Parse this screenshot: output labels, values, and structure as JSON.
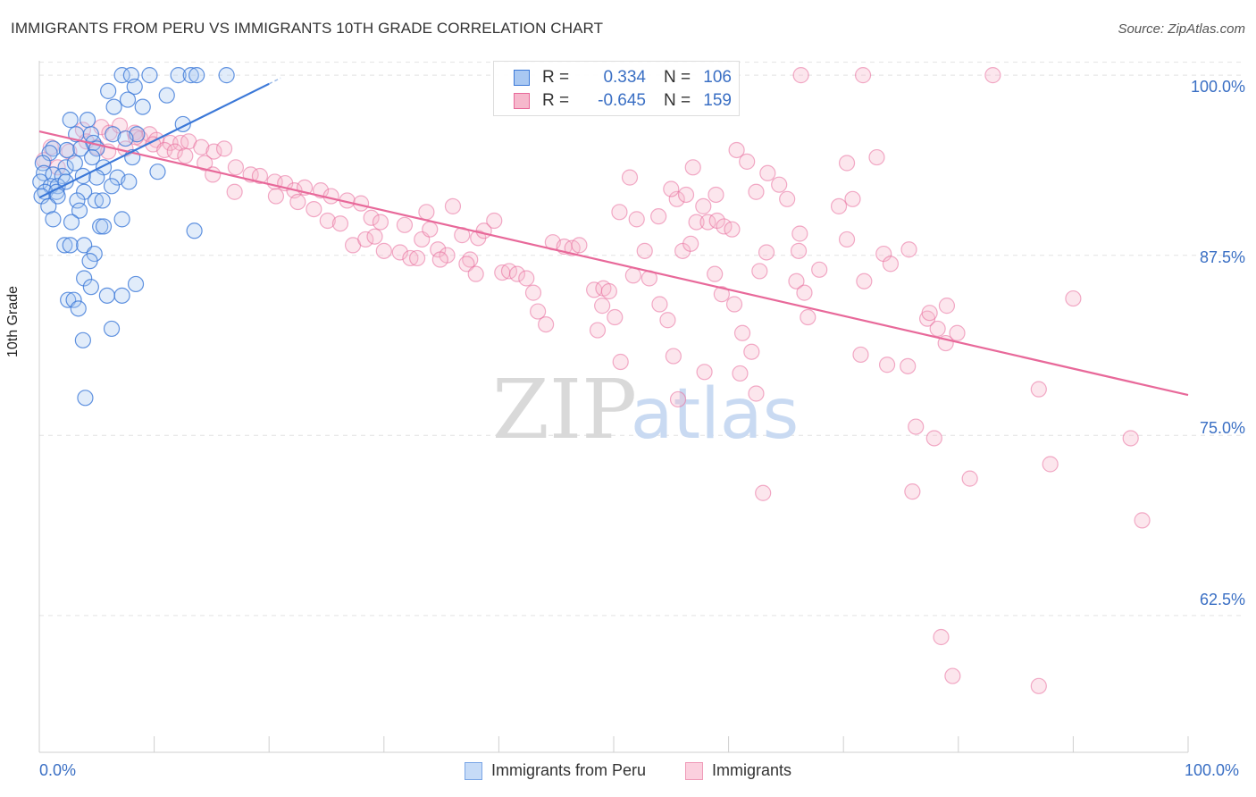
{
  "title": "IMMIGRANTS FROM PERU VS IMMIGRANTS 10TH GRADE CORRELATION CHART",
  "source": "Source: ZipAtlas.com",
  "watermark": {
    "zip": "ZIP",
    "atlas": "atlas"
  },
  "legend": {
    "rows": [
      {
        "r_label": "R =",
        "r_value": "0.334",
        "n_label": "N =",
        "n_value": "106"
      },
      {
        "r_label": "R =",
        "r_value": "-0.645",
        "n_label": "N =",
        "n_value": "159"
      }
    ]
  },
  "bottom_legend": [
    "Immigrants from Peru",
    "Immigrants"
  ],
  "colors": {
    "blue": "#3b78d8",
    "blue_fill": "#a9c8f2",
    "pink": "#e8699a",
    "pink_fill": "#f6b8cc",
    "tick_label": "#3a6fc4"
  },
  "chart_data": {
    "type": "scatter",
    "title": "IMMIGRANTS FROM PERU VS IMMIGRANTS 10TH GRADE CORRELATION CHART",
    "xlabel": "",
    "ylabel": "10th Grade",
    "xlim": [
      0,
      100
    ],
    "ylim": [
      53,
      101
    ],
    "x_tick_labels": [
      "0.0%",
      "100.0%"
    ],
    "y_ticks": [
      62.5,
      75.0,
      87.5,
      100.0
    ],
    "y_tick_labels": [
      "62.5%",
      "75.0%",
      "87.5%",
      "100.0%"
    ],
    "grid": true,
    "legend_position": "top-center",
    "series": [
      {
        "name": "Immigrants from Peru",
        "color": "#3b78d8",
        "r": 0.334,
        "n": 106,
        "trend": {
          "x": [
            0.0,
            20.0
          ],
          "y": [
            91.5,
            99.4
          ]
        },
        "points": [
          [
            7.2,
            100
          ],
          [
            8.0,
            100
          ],
          [
            9.6,
            100
          ],
          [
            12.1,
            100
          ],
          [
            13.2,
            100
          ],
          [
            13.7,
            100
          ],
          [
            16.3,
            100
          ],
          [
            6.0,
            98.9
          ],
          [
            8.3,
            99.2
          ],
          [
            7.7,
            98.3
          ],
          [
            11.1,
            98.6
          ],
          [
            9.0,
            97.8
          ],
          [
            6.5,
            97.8
          ],
          [
            2.7,
            96.9
          ],
          [
            4.2,
            96.9
          ],
          [
            12.5,
            96.6
          ],
          [
            3.2,
            95.9
          ],
          [
            4.5,
            95.9
          ],
          [
            6.4,
            95.9
          ],
          [
            8.5,
            95.9
          ],
          [
            4.7,
            95.3
          ],
          [
            7.5,
            95.6
          ],
          [
            1.2,
            94.9
          ],
          [
            2.4,
            94.8
          ],
          [
            3.6,
            94.9
          ],
          [
            5.0,
            94.9
          ],
          [
            0.9,
            94.6
          ],
          [
            4.6,
            94.3
          ],
          [
            8.1,
            94.3
          ],
          [
            0.3,
            93.9
          ],
          [
            2.3,
            93.6
          ],
          [
            3.1,
            93.9
          ],
          [
            5.6,
            93.6
          ],
          [
            10.3,
            93.3
          ],
          [
            0.4,
            93.2
          ],
          [
            1.2,
            93.1
          ],
          [
            2.0,
            93.0
          ],
          [
            3.8,
            93.0
          ],
          [
            5.0,
            92.9
          ],
          [
            6.8,
            92.9
          ],
          [
            0.1,
            92.6
          ],
          [
            1.0,
            92.3
          ],
          [
            1.6,
            92.3
          ],
          [
            2.3,
            92.6
          ],
          [
            6.3,
            92.3
          ],
          [
            7.8,
            92.6
          ],
          [
            0.5,
            91.9
          ],
          [
            1.5,
            91.9
          ],
          [
            3.9,
            91.9
          ],
          [
            0.2,
            91.6
          ],
          [
            1.6,
            91.6
          ],
          [
            3.3,
            91.3
          ],
          [
            4.9,
            91.3
          ],
          [
            5.5,
            91.3
          ],
          [
            0.8,
            90.9
          ],
          [
            3.5,
            90.6
          ],
          [
            1.2,
            90.0
          ],
          [
            2.8,
            89.8
          ],
          [
            7.2,
            90.0
          ],
          [
            5.3,
            89.5
          ],
          [
            5.6,
            89.5
          ],
          [
            13.5,
            89.2
          ],
          [
            2.2,
            88.2
          ],
          [
            2.7,
            88.2
          ],
          [
            3.9,
            88.2
          ],
          [
            4.8,
            87.6
          ],
          [
            4.4,
            87.1
          ],
          [
            3.9,
            85.9
          ],
          [
            4.5,
            85.3
          ],
          [
            8.4,
            85.5
          ],
          [
            2.5,
            84.4
          ],
          [
            3.0,
            84.4
          ],
          [
            5.9,
            84.7
          ],
          [
            7.2,
            84.7
          ],
          [
            3.4,
            83.8
          ],
          [
            6.3,
            82.4
          ],
          [
            3.8,
            81.6
          ],
          [
            4.0,
            77.6
          ]
        ]
      },
      {
        "name": "Immigrants",
        "color": "#e8699a",
        "r": -0.645,
        "n": 159,
        "trend": {
          "x": [
            0.0,
            100.0
          ],
          "y": [
            96.1,
            77.8
          ]
        },
        "points": [
          [
            66.3,
            100
          ],
          [
            71.7,
            100
          ],
          [
            83.0,
            100
          ],
          [
            1.0,
            95.0
          ],
          [
            3.8,
            96.2
          ],
          [
            5.4,
            96.4
          ],
          [
            6.1,
            96.0
          ],
          [
            7.0,
            96.5
          ],
          [
            8.3,
            96.0
          ],
          [
            8.8,
            95.6
          ],
          [
            9.6,
            95.9
          ],
          [
            10.2,
            95.5
          ],
          [
            11.4,
            95.3
          ],
          [
            12.3,
            95.3
          ],
          [
            13.0,
            95.4
          ],
          [
            14.1,
            95.0
          ],
          [
            15.2,
            94.7
          ],
          [
            16.1,
            94.9
          ],
          [
            0.4,
            94.1
          ],
          [
            1.6,
            93.6
          ],
          [
            2.6,
            94.7
          ],
          [
            4.1,
            95.4
          ],
          [
            5.0,
            95.0
          ],
          [
            6.0,
            94.7
          ],
          [
            7.5,
            94.9
          ],
          [
            8.4,
            95.7
          ],
          [
            9.9,
            95.2
          ],
          [
            10.9,
            94.8
          ],
          [
            11.8,
            94.7
          ],
          [
            12.7,
            94.4
          ],
          [
            14.4,
            93.9
          ],
          [
            15.1,
            93.1
          ],
          [
            17.1,
            93.6
          ],
          [
            18.4,
            93.1
          ],
          [
            19.2,
            93.0
          ],
          [
            20.5,
            92.6
          ],
          [
            21.4,
            92.5
          ],
          [
            22.2,
            92.0
          ],
          [
            23.1,
            92.2
          ],
          [
            24.5,
            92.0
          ],
          [
            25.4,
            91.6
          ],
          [
            26.8,
            91.3
          ],
          [
            28.0,
            91.1
          ],
          [
            28.9,
            90.1
          ],
          [
            29.7,
            89.8
          ],
          [
            17.0,
            91.9
          ],
          [
            20.6,
            91.6
          ],
          [
            22.5,
            91.2
          ],
          [
            23.9,
            90.7
          ],
          [
            25.1,
            89.9
          ],
          [
            26.2,
            89.7
          ],
          [
            27.3,
            88.2
          ],
          [
            28.4,
            88.6
          ],
          [
            29.2,
            88.8
          ],
          [
            30.0,
            87.8
          ],
          [
            31.4,
            87.7
          ],
          [
            32.3,
            87.3
          ],
          [
            33.3,
            88.6
          ],
          [
            34.0,
            89.3
          ],
          [
            34.7,
            87.9
          ],
          [
            35.5,
            87.5
          ],
          [
            36.8,
            88.9
          ],
          [
            37.5,
            87.2
          ],
          [
            38.2,
            88.7
          ],
          [
            38.7,
            89.2
          ],
          [
            39.6,
            89.9
          ],
          [
            31.8,
            89.6
          ],
          [
            33.7,
            90.5
          ],
          [
            36.0,
            90.9
          ],
          [
            32.9,
            87.3
          ],
          [
            34.9,
            87.2
          ],
          [
            37.2,
            86.9
          ],
          [
            38.0,
            86.2
          ],
          [
            40.3,
            86.3
          ],
          [
            40.9,
            86.4
          ],
          [
            41.6,
            86.2
          ],
          [
            42.4,
            85.9
          ],
          [
            43.0,
            84.9
          ],
          [
            43.4,
            83.6
          ],
          [
            44.7,
            88.4
          ],
          [
            45.7,
            88.1
          ],
          [
            46.4,
            88.0
          ],
          [
            47.0,
            88.2
          ],
          [
            44.1,
            82.7
          ],
          [
            48.3,
            85.1
          ],
          [
            49.1,
            85.2
          ],
          [
            49.6,
            85.0
          ],
          [
            49.0,
            84.0
          ],
          [
            48.6,
            82.3
          ],
          [
            50.1,
            83.2
          ],
          [
            50.6,
            80.1
          ],
          [
            51.7,
            86.1
          ],
          [
            52.7,
            87.8
          ],
          [
            53.1,
            85.9
          ],
          [
            54.0,
            84.1
          ],
          [
            54.7,
            83.0
          ],
          [
            55.2,
            80.5
          ],
          [
            56.0,
            87.8
          ],
          [
            56.7,
            88.3
          ],
          [
            50.5,
            90.5
          ],
          [
            52.0,
            90.0
          ],
          [
            53.9,
            90.2
          ],
          [
            55.5,
            91.4
          ],
          [
            56.3,
            91.7
          ],
          [
            57.2,
            89.8
          ],
          [
            58.2,
            89.8
          ],
          [
            59.0,
            89.9
          ],
          [
            59.6,
            89.5
          ],
          [
            51.4,
            92.9
          ],
          [
            55.0,
            92.1
          ],
          [
            56.9,
            93.6
          ],
          [
            57.8,
            90.9
          ],
          [
            58.9,
            91.7
          ],
          [
            60.3,
            89.3
          ],
          [
            58.8,
            86.2
          ],
          [
            59.4,
            84.8
          ],
          [
            60.5,
            84.1
          ],
          [
            61.2,
            82.1
          ],
          [
            62.0,
            80.8
          ],
          [
            55.6,
            77.5
          ],
          [
            57.9,
            79.4
          ],
          [
            61.0,
            79.3
          ],
          [
            62.4,
            77.9
          ],
          [
            62.7,
            86.4
          ],
          [
            63.3,
            87.7
          ],
          [
            60.7,
            94.8
          ],
          [
            61.6,
            94.0
          ],
          [
            62.4,
            91.9
          ],
          [
            63.4,
            93.2
          ],
          [
            64.4,
            92.4
          ],
          [
            65.1,
            91.4
          ],
          [
            66.1,
            87.8
          ],
          [
            65.9,
            85.7
          ],
          [
            66.6,
            84.9
          ],
          [
            66.9,
            83.2
          ],
          [
            67.9,
            86.5
          ],
          [
            69.6,
            90.9
          ],
          [
            70.3,
            93.9
          ],
          [
            70.8,
            91.4
          ],
          [
            71.8,
            85.7
          ],
          [
            72.9,
            94.3
          ],
          [
            73.5,
            87.6
          ],
          [
            74.1,
            86.9
          ],
          [
            75.7,
            87.9
          ],
          [
            77.3,
            83.1
          ],
          [
            78.2,
            82.4
          ],
          [
            79.0,
            84.0
          ],
          [
            79.9,
            82.1
          ],
          [
            66.2,
            89.0
          ],
          [
            70.3,
            88.6
          ],
          [
            71.5,
            80.6
          ],
          [
            73.8,
            79.9
          ],
          [
            75.6,
            79.8
          ],
          [
            77.5,
            83.5
          ],
          [
            78.9,
            81.4
          ],
          [
            76.3,
            75.6
          ],
          [
            77.9,
            74.8
          ],
          [
            76.0,
            71.1
          ],
          [
            87.0,
            78.2
          ],
          [
            90.0,
            84.5
          ],
          [
            95.0,
            74.8
          ],
          [
            96.0,
            69.1
          ],
          [
            88.0,
            73.0
          ],
          [
            63.0,
            71.0
          ],
          [
            81.0,
            72.0
          ],
          [
            79.5,
            58.3
          ],
          [
            78.5,
            61.0
          ],
          [
            87.0,
            57.6
          ]
        ]
      }
    ]
  }
}
